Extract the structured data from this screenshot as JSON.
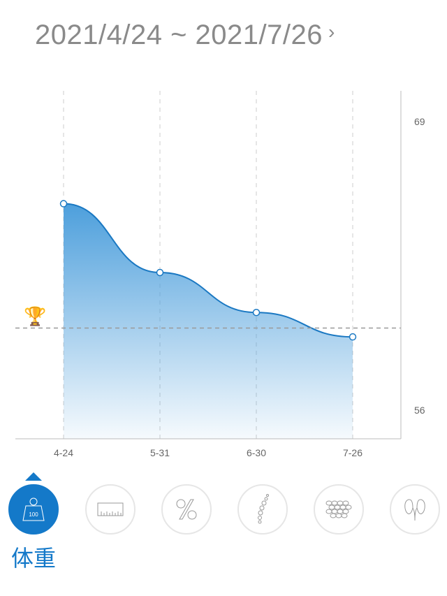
{
  "header": {
    "date_range": "2021/4/24 ~ 2021/7/26",
    "next_icon": "chevron-right-icon"
  },
  "chart_data": {
    "type": "area",
    "x": [
      "4-24",
      "5-31",
      "6-30",
      "7-26"
    ],
    "values": [
      65.3,
      62.2,
      60.4,
      59.3
    ],
    "y_ticks": [
      "69",
      "56"
    ],
    "ylim": [
      56,
      69
    ],
    "y_axis_side": "right",
    "goal": 59.7,
    "goal_icon": "trophy-icon",
    "grid": "vertical dashed",
    "line_color": "#1a78c2",
    "fill_color": "#4d9fdc"
  },
  "nav": {
    "selected_label": "体重",
    "items": [
      {
        "icon": "weight-icon",
        "text": "100"
      },
      {
        "icon": "ruler-icon"
      },
      {
        "icon": "percent-icon"
      },
      {
        "icon": "spine-icon"
      },
      {
        "icon": "fat-cells-icon"
      },
      {
        "icon": "kidney-icon"
      }
    ],
    "accent": "#1479c9"
  }
}
